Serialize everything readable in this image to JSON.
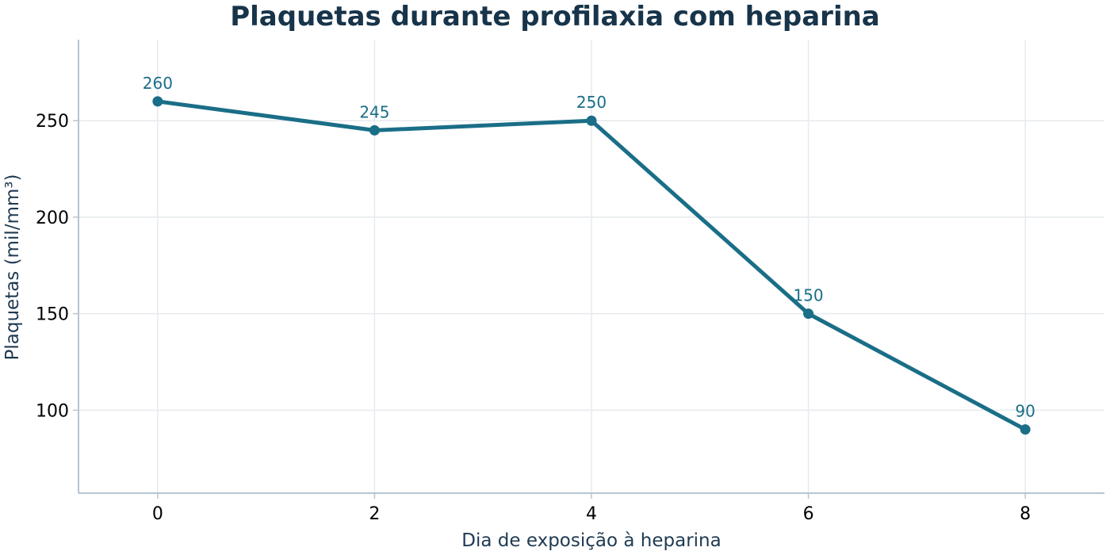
{
  "colors": {
    "line": "#1a6e87",
    "title": "#17344a",
    "axis_label": "#1f3a52",
    "tick_label": "#000000",
    "grid": "#e6eaee",
    "spine": "#b8c4d0"
  },
  "chart_data": {
    "type": "line",
    "title": "Plaquetas durante profilaxia com heparina",
    "xlabel": "Dia de exposição à heparina",
    "ylabel": "Plaquetas (mil/mm³)",
    "x": [
      0,
      2,
      4,
      6,
      8
    ],
    "series": [
      {
        "values": [
          260,
          245,
          250,
          150,
          90
        ],
        "data_labels": [
          "260",
          "245",
          "250",
          "150",
          "90"
        ]
      }
    ],
    "xlim": [
      -0.73,
      8.73
    ],
    "ylim": [
      57,
      292
    ],
    "xticks": [
      0,
      2,
      4,
      6,
      8
    ],
    "xtick_labels": [
      "0",
      "2",
      "4",
      "6",
      "8"
    ],
    "yticks": [
      100,
      150,
      200,
      250
    ],
    "ytick_labels": [
      "100",
      "150",
      "200",
      "250"
    ],
    "grid": true,
    "legend": "none"
  }
}
